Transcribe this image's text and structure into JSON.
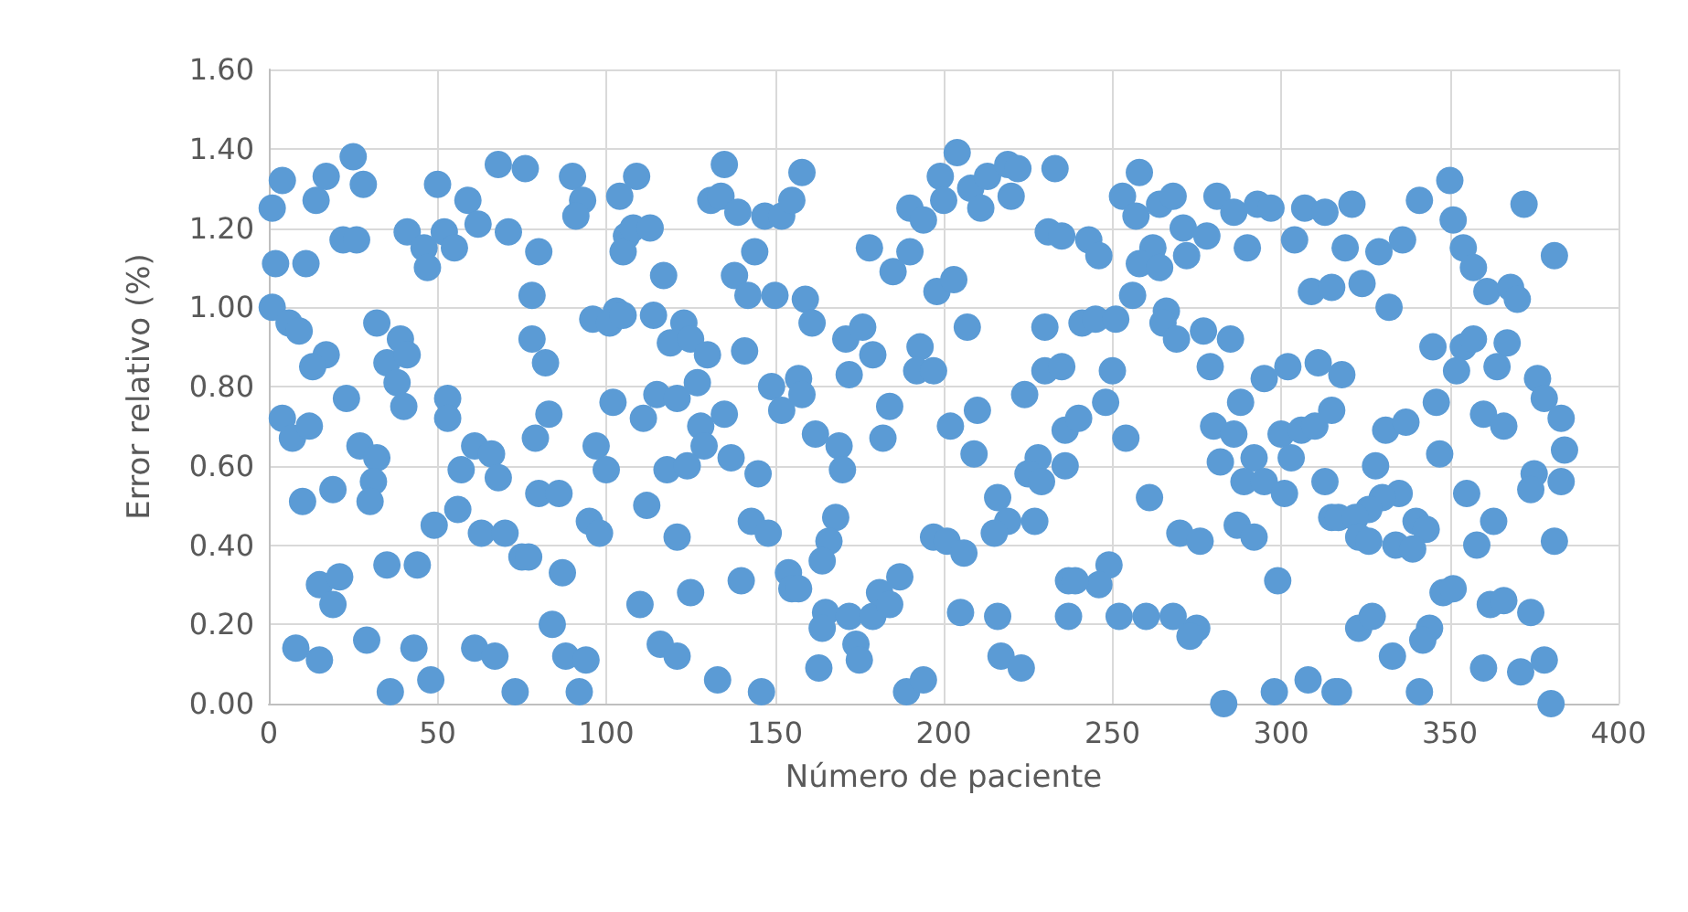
{
  "chart_data": {
    "type": "scatter",
    "xlabel": "Número de paciente",
    "ylabel": "Error relativo (%)",
    "xlim": [
      0,
      400
    ],
    "xticks": [
      0,
      50,
      100,
      150,
      200,
      250,
      300,
      350,
      400
    ],
    "ylim": [
      0,
      1.6
    ],
    "yticks": [
      {
        "value": 0,
        "label": "0.00"
      },
      {
        "value": 0.2,
        "label": "0.20"
      },
      {
        "value": 0.4,
        "label": "0.40"
      },
      {
        "value": 0.6,
        "label": "0.60"
      },
      {
        "value": 0.8,
        "label": "0.80"
      },
      {
        "value": 1.0,
        "label": "1.00"
      },
      {
        "value": 1.2,
        "label": "1.20"
      },
      {
        "value": 1.4,
        "label": "1.40"
      },
      {
        "value": 1.6,
        "label": "1.60"
      }
    ],
    "grid": true,
    "marker": "circle",
    "series": [
      {
        "color": "#5b9bd5",
        "x": [
          1,
          4,
          2,
          1,
          4,
          11,
          6,
          9,
          17,
          13,
          7,
          12,
          10,
          19,
          8,
          15,
          15,
          21,
          19,
          25,
          17,
          14,
          28,
          22,
          26,
          32,
          23,
          27,
          32,
          31,
          30,
          29,
          35,
          41,
          46,
          47,
          50,
          52,
          55,
          39,
          35,
          41,
          38,
          40,
          43,
          36,
          48,
          44,
          49,
          56,
          53,
          53,
          57,
          61,
          66,
          68,
          63,
          70,
          75,
          59,
          62,
          71,
          68,
          76,
          61,
          67,
          73,
          90,
          93,
          91,
          80,
          78,
          78,
          82,
          83,
          79,
          80,
          86,
          77,
          87,
          84,
          88,
          94,
          92,
          95,
          98,
          97,
          100,
          96,
          103,
          101,
          105,
          102,
          104,
          109,
          106,
          105,
          108,
          113,
          117,
          114,
          119,
          123,
          125,
          130,
          127,
          115,
          121,
          111,
          128,
          135,
          129,
          118,
          124,
          137,
          145,
          112,
          121,
          110,
          125,
          140,
          116,
          121,
          133,
          146,
          143,
          148,
          135,
          131,
          134,
          139,
          147,
          152,
          155,
          144,
          138,
          142,
          150,
          141,
          149,
          152,
          154,
          155,
          158,
          159,
          161,
          157,
          158,
          162,
          169,
          170,
          168,
          166,
          164,
          157,
          165,
          164,
          163,
          172,
          174,
          175,
          179,
          181,
          184,
          187,
          189,
          194,
          171,
          176,
          179,
          172,
          178,
          185,
          190,
          190,
          194,
          199,
          204,
          200,
          208,
          211,
          213,
          219,
          222,
          220,
          233,
          231,
          235,
          198,
          203,
          207,
          193,
          192,
          197,
          184,
          182,
          202,
          210,
          209,
          224,
          230,
          230,
          235,
          236,
          228,
          225,
          229,
          236,
          216,
          219,
          215,
          227,
          197,
          201,
          206,
          205,
          216,
          217,
          223,
          237,
          237,
          258,
          253,
          257,
          264,
          268,
          271,
          278,
          281,
          286,
          293,
          297,
          307,
          313,
          243,
          246,
          262,
          258,
          264,
          272,
          290,
          304,
          256,
          309,
          315,
          241,
          245,
          251,
          266,
          265,
          269,
          277,
          285,
          279,
          250,
          295,
          302,
          311,
          288,
          248,
          240,
          254,
          280,
          286,
          300,
          306,
          310,
          315,
          282,
          292,
          303,
          289,
          295,
          301,
          313,
          315,
          261,
          270,
          276,
          287,
          292,
          249,
          246,
          239,
          299,
          252,
          260,
          268,
          275,
          273,
          283,
          298,
          308,
          316,
          321,
          341,
          350,
          351,
          372,
          319,
          329,
          336,
          354,
          357,
          324,
          332,
          361,
          368,
          370,
          381,
          345,
          354,
          357,
          367,
          352,
          364,
          376,
          378,
          318,
          383,
          384,
          346,
          360,
          366,
          331,
          337,
          347,
          328,
          375,
          374,
          383,
          355,
          335,
          330,
          326,
          317,
          322,
          340,
          343,
          323,
          326,
          334,
          339,
          363,
          358,
          381,
          348,
          351,
          362,
          366,
          374,
          323,
          327,
          344,
          342,
          333,
          360,
          371,
          378,
          380,
          317,
          341
        ],
        "values": [
          1.25,
          1.32,
          1.11,
          1.0,
          0.72,
          1.11,
          0.96,
          0.94,
          0.88,
          0.85,
          0.67,
          0.7,
          0.51,
          0.54,
          0.14,
          0.11,
          0.3,
          0.32,
          0.25,
          1.38,
          1.33,
          1.27,
          1.31,
          1.17,
          1.17,
          0.96,
          0.77,
          0.65,
          0.62,
          0.56,
          0.51,
          0.16,
          0.35,
          1.19,
          1.15,
          1.1,
          1.31,
          1.19,
          1.15,
          0.92,
          0.86,
          0.88,
          0.81,
          0.75,
          0.14,
          0.03,
          0.06,
          0.35,
          0.45,
          0.49,
          0.77,
          0.72,
          0.59,
          0.65,
          0.63,
          0.57,
          0.43,
          0.43,
          0.37,
          1.27,
          1.21,
          1.19,
          1.36,
          1.35,
          0.14,
          0.12,
          0.03,
          1.33,
          1.27,
          1.23,
          1.14,
          1.03,
          0.92,
          0.86,
          0.73,
          0.67,
          0.53,
          0.53,
          0.37,
          0.33,
          0.2,
          0.12,
          0.11,
          0.03,
          0.46,
          0.43,
          0.65,
          0.59,
          0.97,
          0.99,
          0.96,
          0.98,
          0.76,
          1.28,
          1.33,
          1.18,
          1.14,
          1.2,
          1.2,
          1.08,
          0.98,
          0.91,
          0.96,
          0.92,
          0.88,
          0.81,
          0.78,
          0.77,
          0.72,
          0.7,
          0.73,
          0.65,
          0.59,
          0.6,
          0.62,
          0.58,
          0.5,
          0.42,
          0.25,
          0.28,
          0.31,
          0.15,
          0.12,
          0.06,
          0.03,
          0.46,
          0.43,
          1.36,
          1.27,
          1.28,
          1.24,
          1.23,
          1.23,
          1.27,
          1.14,
          1.08,
          1.03,
          1.03,
          0.89,
          0.8,
          0.74,
          0.33,
          0.29,
          1.34,
          1.02,
          0.96,
          0.82,
          0.78,
          0.68,
          0.65,
          0.59,
          0.47,
          0.41,
          0.36,
          0.29,
          0.23,
          0.19,
          0.09,
          0.22,
          0.15,
          0.11,
          0.22,
          0.28,
          0.25,
          0.32,
          0.03,
          0.06,
          0.92,
          0.95,
          0.88,
          0.83,
          1.15,
          1.09,
          1.14,
          1.25,
          1.22,
          1.33,
          1.39,
          1.27,
          1.3,
          1.25,
          1.33,
          1.36,
          1.35,
          1.28,
          1.35,
          1.19,
          1.18,
          1.04,
          1.07,
          0.95,
          0.9,
          0.84,
          0.84,
          0.75,
          0.67,
          0.7,
          0.74,
          0.63,
          0.78,
          0.95,
          0.84,
          0.85,
          0.69,
          0.62,
          0.58,
          0.56,
          0.6,
          0.52,
          0.46,
          0.43,
          0.46,
          0.42,
          0.41,
          0.38,
          0.23,
          0.22,
          0.12,
          0.09,
          0.31,
          0.22,
          1.34,
          1.28,
          1.23,
          1.26,
          1.28,
          1.2,
          1.18,
          1.28,
          1.24,
          1.26,
          1.25,
          1.25,
          1.24,
          1.17,
          1.13,
          1.15,
          1.11,
          1.1,
          1.13,
          1.15,
          1.17,
          1.03,
          1.04,
          1.05,
          0.96,
          0.97,
          0.97,
          0.99,
          0.96,
          0.92,
          0.94,
          0.92,
          0.85,
          0.84,
          0.82,
          0.85,
          0.86,
          0.76,
          0.76,
          0.72,
          0.67,
          0.7,
          0.68,
          0.68,
          0.69,
          0.7,
          0.74,
          0.61,
          0.62,
          0.62,
          0.56,
          0.56,
          0.53,
          0.56,
          0.47,
          0.52,
          0.43,
          0.41,
          0.45,
          0.42,
          0.35,
          0.3,
          0.31,
          0.31,
          0.22,
          0.22,
          0.22,
          0.19,
          0.17,
          0.0,
          0.03,
          0.06,
          0.03,
          1.26,
          1.27,
          1.32,
          1.22,
          1.26,
          1.15,
          1.14,
          1.17,
          1.15,
          1.1,
          1.06,
          1.0,
          1.04,
          1.05,
          1.02,
          1.13,
          0.9,
          0.9,
          0.92,
          0.91,
          0.84,
          0.85,
          0.82,
          0.77,
          0.83,
          0.72,
          0.64,
          0.76,
          0.73,
          0.7,
          0.69,
          0.71,
          0.63,
          0.6,
          0.58,
          0.54,
          0.56,
          0.53,
          0.53,
          0.52,
          0.49,
          0.47,
          0.47,
          0.46,
          0.44,
          0.42,
          0.41,
          0.4,
          0.39,
          0.46,
          0.4,
          0.41,
          0.28,
          0.29,
          0.25,
          0.26,
          0.23,
          0.19,
          0.22,
          0.19,
          0.16,
          0.12,
          0.09,
          0.08,
          0.11,
          0.0,
          0.03,
          0.03
        ]
      }
    ]
  }
}
